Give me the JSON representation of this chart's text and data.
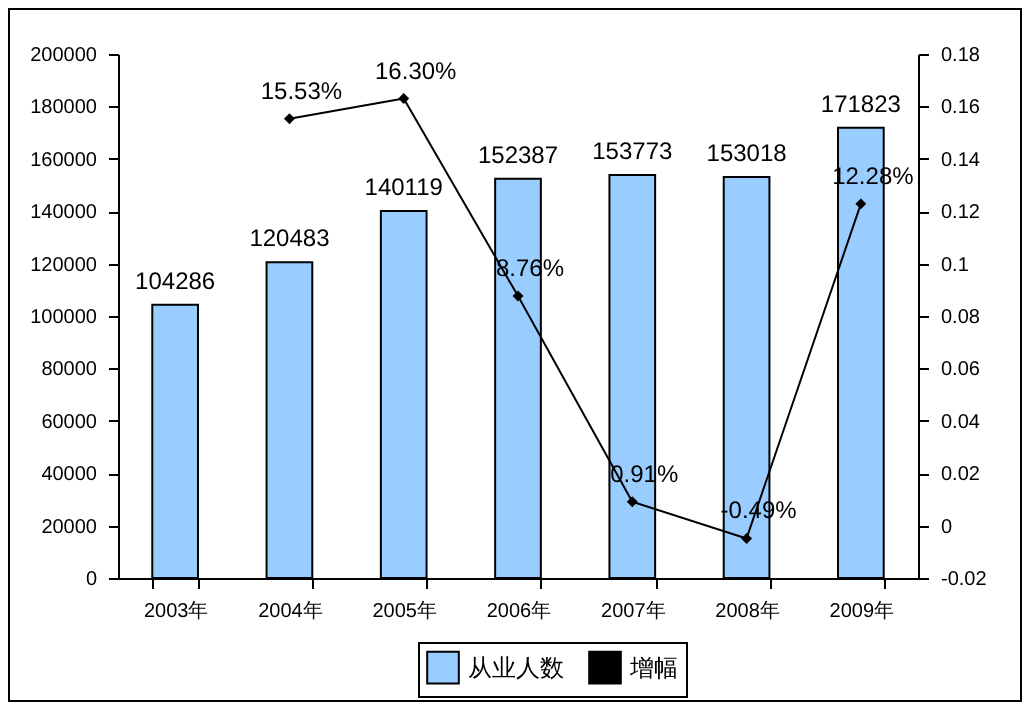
{
  "chart_data": {
    "type": "bar",
    "categories": [
      "2003年",
      "2004年",
      "2005年",
      "2006年",
      "2007年",
      "2008年",
      "2009年"
    ],
    "series": [
      {
        "name": "从业人数",
        "color": "#99ccff",
        "values": [
          104286,
          120483,
          140119,
          152387,
          153773,
          153018,
          171823
        ]
      },
      {
        "name": "增幅",
        "type": "line",
        "axis": "y2",
        "color": "#000000",
        "marker": "diamond",
        "values": [
          null,
          0.1553,
          0.163,
          0.0876,
          0.0091,
          -0.0049,
          0.1228
        ],
        "value_labels": [
          null,
          "15.53%",
          "16.30%",
          "8.76%",
          "0.91%",
          "-0.49%",
          "12.28%"
        ]
      }
    ],
    "data_labels": true,
    "ylim": [
      0,
      200000
    ],
    "yticks": [
      0,
      20000,
      40000,
      60000,
      80000,
      100000,
      120000,
      140000,
      160000,
      180000,
      200000
    ],
    "y2lim": [
      -0.02,
      0.18
    ],
    "y2ticks": [
      -0.02,
      0,
      0.02,
      0.04,
      0.06,
      0.08,
      0.1,
      0.12,
      0.14,
      0.16,
      0.18
    ],
    "legend": "bottom"
  }
}
